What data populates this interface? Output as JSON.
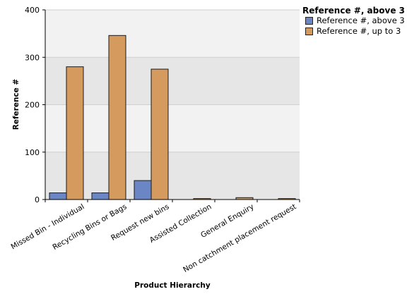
{
  "chart_data": {
    "type": "bar",
    "categories": [
      "Missed Bin - Individual",
      "Recycling Bins or Bags",
      "Request new bins",
      "Assisted Collection",
      "General Enquiry",
      "Non catchment placement request"
    ],
    "series": [
      {
        "name": "Reference #, above 3",
        "values": [
          14,
          14,
          40,
          0,
          0,
          0
        ],
        "color": "#6a86c4"
      },
      {
        "name": "Reference #, up to 3",
        "values": [
          280,
          346,
          275,
          2,
          4,
          2
        ],
        "color": "#d49a5e"
      }
    ],
    "xlabel": "Product Hierarchy",
    "ylabel": "Reference #",
    "ylim": [
      0,
      400
    ],
    "yticks": [
      0,
      100,
      200,
      300,
      400
    ],
    "legend_title": "Reference #, above 3",
    "legend_position": "top-right",
    "grid": true,
    "plot_band_colors": [
      "#f2f2f2",
      "#e6e6e6"
    ]
  }
}
